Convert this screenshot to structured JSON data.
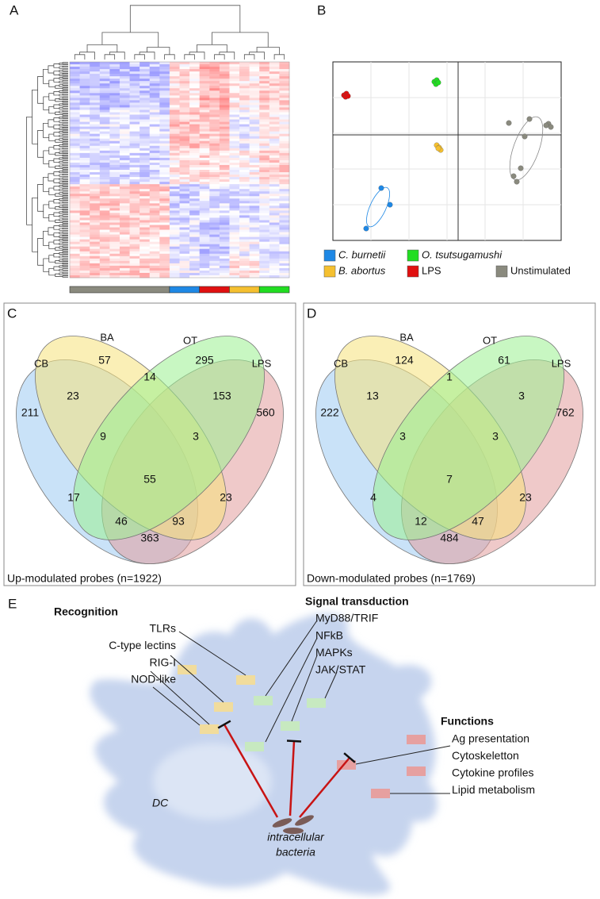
{
  "panels": {
    "A": {
      "label": "A"
    },
    "B": {
      "label": "B",
      "legend": [
        {
          "label": "C. burnetii",
          "color": "#1e88e5"
        },
        {
          "label": "O. tsutsugamushi",
          "color": "#22dd22"
        },
        {
          "label": "B. abortus",
          "color": "#f5c030"
        },
        {
          "label": "LPS",
          "color": "#e01010"
        },
        {
          "label": "Unstimulated",
          "color": "#8a8a7e"
        }
      ]
    },
    "C": {
      "label": "C",
      "sets": [
        "CB",
        "BA",
        "OT",
        "LPS"
      ],
      "regions": [
        57,
        295,
        211,
        560,
        23,
        14,
        153,
        9,
        3,
        55,
        17,
        23,
        46,
        93,
        363
      ],
      "caption": "Up-modulated probes (n=1922)"
    },
    "D": {
      "label": "D",
      "sets": [
        "CB",
        "BA",
        "OT",
        "LPS"
      ],
      "regions": [
        124,
        61,
        222,
        762,
        13,
        1,
        3,
        3,
        3,
        7,
        4,
        23,
        12,
        47,
        484
      ],
      "caption": "Down-modulated probes (n=1769)"
    },
    "E": {
      "label": "E",
      "recognition": {
        "title": "Recognition",
        "items": [
          "TLRs",
          "C-type lectins",
          "RIG-I",
          "NOD-like"
        ]
      },
      "signal": {
        "title": "Signal transduction",
        "items": [
          "MyD88/TRIF",
          "NFkB",
          "MAPKs",
          "JAK/STAT"
        ]
      },
      "functions": {
        "title": "Functions",
        "items": [
          "Ag presentation",
          "Cytoskeletton",
          "Cytokine profiles",
          "Lipid metabolism"
        ]
      },
      "cell": "DC",
      "bacteria": [
        "intracellular",
        "bacteria"
      ]
    }
  }
}
